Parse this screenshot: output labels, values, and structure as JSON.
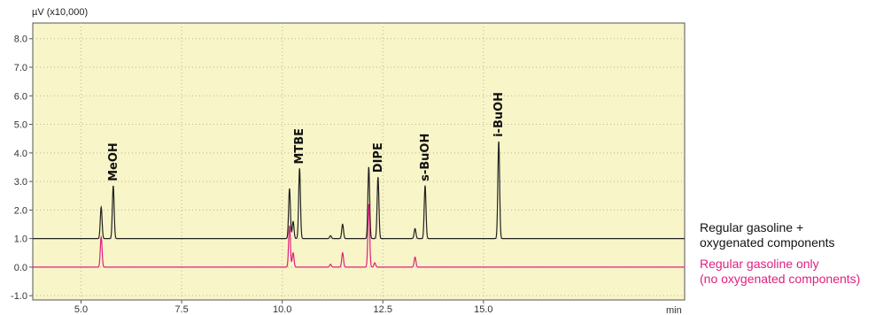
{
  "chart_data": {
    "type": "line",
    "y_unit_label": "µV (x10,000)",
    "x_unit_label": "min",
    "xlim": [
      3.8,
      20.0
    ],
    "ylim": [
      -1.15,
      8.55
    ],
    "x_ticks": [
      5.0,
      7.5,
      10.0,
      12.5,
      15.0
    ],
    "y_ticks": [
      -1.0,
      0.0,
      1.0,
      2.0,
      3.0,
      4.0,
      5.0,
      6.0,
      7.0,
      8.0
    ],
    "plot_background": "#f8f5c8",
    "series": [
      {
        "name": "Regular gasoline + oxygenated components",
        "color": "#222222",
        "baseline": 1.0,
        "peaks": [
          {
            "x": 5.5,
            "y": 2.1
          },
          {
            "x": 5.8,
            "y": 2.85
          },
          {
            "x": 10.18,
            "y": 2.75
          },
          {
            "x": 10.27,
            "y": 1.6
          },
          {
            "x": 10.43,
            "y": 3.45
          },
          {
            "x": 11.2,
            "y": 1.1
          },
          {
            "x": 11.5,
            "y": 1.5
          },
          {
            "x": 12.15,
            "y": 3.5
          },
          {
            "x": 12.38,
            "y": 3.15
          },
          {
            "x": 13.3,
            "y": 1.35
          },
          {
            "x": 13.55,
            "y": 2.85
          },
          {
            "x": 15.38,
            "y": 4.4
          }
        ]
      },
      {
        "name": "Regular gasoline only (no oxygenated components)",
        "color": "#e0207f",
        "baseline": 0.0,
        "peaks": [
          {
            "x": 5.5,
            "y": 1.05
          },
          {
            "x": 10.18,
            "y": 1.45
          },
          {
            "x": 10.27,
            "y": 0.5
          },
          {
            "x": 11.2,
            "y": 0.1
          },
          {
            "x": 11.5,
            "y": 0.5
          },
          {
            "x": 12.15,
            "y": 2.2
          },
          {
            "x": 12.3,
            "y": 0.15
          },
          {
            "x": 13.3,
            "y": 0.35
          }
        ]
      }
    ],
    "annotations": [
      {
        "text": "MeOH",
        "x": 5.8,
        "y": 2.85
      },
      {
        "text": "MTBE",
        "x": 10.43,
        "y": 3.45
      },
      {
        "text": "DIPE",
        "x": 12.38,
        "y": 3.15
      },
      {
        "text": "s-BuOH",
        "x": 13.55,
        "y": 2.85
      },
      {
        "text": "i-BuOH",
        "x": 15.38,
        "y": 4.4
      }
    ]
  },
  "legend": {
    "oxygenated_line1": "Regular gasoline +",
    "oxygenated_line2": "oxygenated components",
    "regular_line1": "Regular gasoline only",
    "regular_line2": "(no oxygenated components)"
  }
}
